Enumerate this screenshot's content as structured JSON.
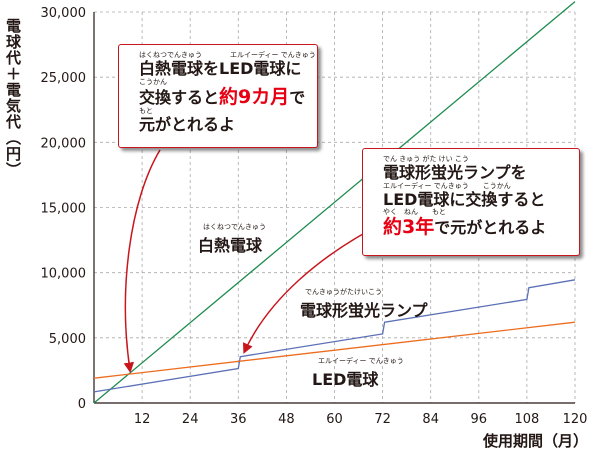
{
  "chart_data": {
    "type": "line",
    "ylabel": "電球代＋電気代（円）",
    "xlabel": "使用期間（月）",
    "xlim": [
      0,
      120
    ],
    "ylim": [
      0,
      30000
    ],
    "x_ticks": [
      12,
      24,
      36,
      48,
      60,
      72,
      84,
      96,
      108,
      120
    ],
    "y_ticks": [
      0,
      5000,
      10000,
      15000,
      20000,
      25000,
      30000
    ],
    "y_tick_labels": [
      "0",
      "5,000",
      "10,000",
      "15,000",
      "20,000",
      "25,000",
      "30,000"
    ],
    "grid": "horizontal dashed, vertical dashed",
    "series": [
      {
        "name": "白熱電球",
        "ruby": "はくねつでんきゅう",
        "color": "#1e8c4e",
        "points": [
          [
            0,
            0
          ],
          [
            120,
            30800
          ]
        ]
      },
      {
        "name": "電球形蛍光ランプ",
        "ruby": "でんきゅうがたけいこう",
        "color": "#5b70b6",
        "points": [
          [
            0,
            850
          ],
          [
            36,
            2650
          ],
          [
            36.5,
            3550
          ],
          [
            72,
            5300
          ],
          [
            72.5,
            6200
          ],
          [
            108,
            7950
          ],
          [
            108.5,
            8850
          ],
          [
            120,
            9450
          ]
        ]
      },
      {
        "name": "LED電球",
        "ruby": "エルイーディー でんきゅう",
        "color": "#ec6d1f",
        "points": [
          [
            0,
            1900
          ],
          [
            120,
            6200
          ]
        ]
      }
    ],
    "annotations": [
      {
        "ruby": [
          "はくねつでんきゅう　　　　エルイーディー でんきゅう",
          "こうかん",
          "もと"
        ],
        "lines": [
          "白熱電球をLED電球に",
          "交換すると約9カ月で",
          "元がとれるよ"
        ],
        "highlight": "約9カ月",
        "points_to": [
          9,
          2000
        ]
      },
      {
        "ruby": [
          "でん きゅう がた けい こう",
          "エルイーディー でんきゅう　　こうかん",
          "やく　ねん　　もと"
        ],
        "lines": [
          "電球形蛍光ランプを",
          "LED電球に交換すると",
          "約3年で元がとれるよ"
        ],
        "highlight": "約3年",
        "points_to": [
          37,
          3300
        ]
      }
    ]
  }
}
